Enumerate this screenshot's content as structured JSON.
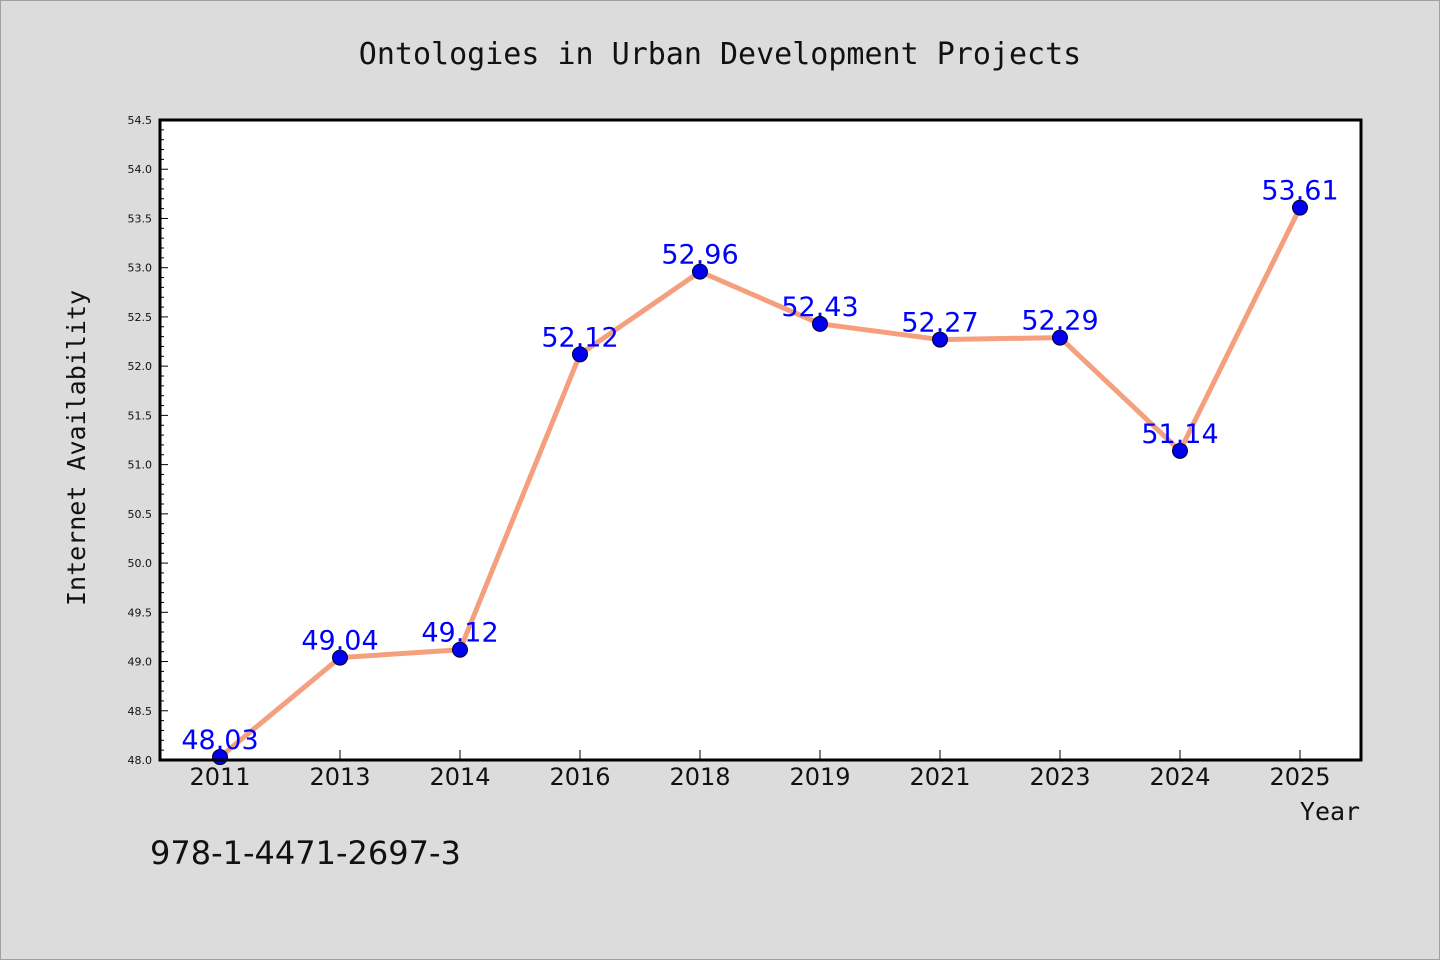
{
  "colors": {
    "background": "#dcdcdc",
    "plot_background": "#ffffff",
    "line": "#f4a07e",
    "marker": "#0000ee",
    "data_label": "#0000ff",
    "axis": "#000000"
  },
  "footer": {
    "isbn": "978-1-4471-2697-3"
  },
  "chart_data": {
    "type": "line",
    "title": "Ontologies in Urban Development Projects",
    "xlabel": "Year",
    "ylabel": "Internet Availability",
    "categories": [
      "2011",
      "2013",
      "2014",
      "2016",
      "2018",
      "2019",
      "2021",
      "2023",
      "2024",
      "2025"
    ],
    "series": [
      {
        "values": [
          48.03,
          49.04,
          49.12,
          52.12,
          52.96,
          52.43,
          52.27,
          52.29,
          51.14,
          53.61
        ]
      }
    ],
    "data_labels": [
      "48.03",
      "49.04",
      "49.12",
      "52.12",
      "52.96",
      "52.43",
      "52.27",
      "52.29",
      "51.14",
      "53.61"
    ],
    "ylim": [
      48.0,
      54.5
    ],
    "yticks": [
      "48.0",
      "48.5",
      "49.0",
      "49.5",
      "50.0",
      "50.5",
      "51.0",
      "51.5",
      "52.0",
      "52.5",
      "53.0",
      "53.5",
      "54.0",
      "54.5"
    ],
    "grid": false,
    "legend": "none"
  }
}
